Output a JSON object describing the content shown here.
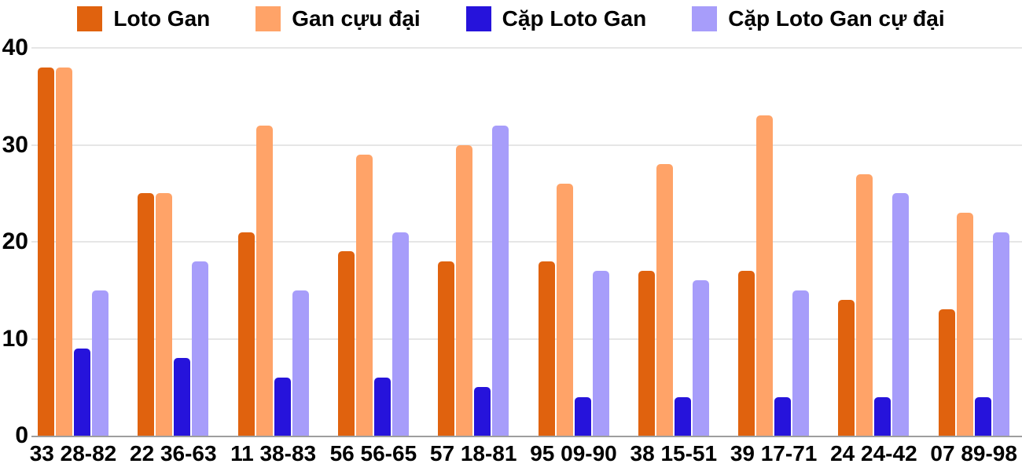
{
  "chart_data": {
    "type": "bar",
    "title": "",
    "xlabel": "",
    "ylabel": "",
    "categories": [
      "33 28-82",
      "22 36-63",
      "11 38-83",
      "56 56-65",
      "57 18-81",
      "95 09-90",
      "38 15-51",
      "39 17-71",
      "24 24-42",
      "07 89-98"
    ],
    "series": [
      {
        "name": "Loto Gan",
        "color": "#E0620E",
        "values": [
          38,
          25,
          21,
          19,
          18,
          18,
          17,
          17,
          14,
          13
        ]
      },
      {
        "name": "Gan cựu đại",
        "color": "#FFA368",
        "values": [
          38,
          25,
          32,
          29,
          30,
          26,
          28,
          33,
          27,
          23
        ]
      },
      {
        "name": "Cặp Loto Gan",
        "color": "#2613DB",
        "values": [
          9,
          8,
          6,
          6,
          5,
          4,
          4,
          4,
          4,
          4
        ]
      },
      {
        "name": "Cặp Loto Gan cự đại",
        "color": "#A79DFA",
        "values": [
          15,
          18,
          15,
          21,
          32,
          17,
          16,
          15,
          25,
          21
        ]
      }
    ],
    "ylim": [
      0,
      40
    ],
    "yticks": [
      0,
      10,
      20,
      30,
      40
    ],
    "grid": true,
    "legend_position": "top"
  },
  "colors": {
    "background": "#FFFFFF",
    "gridline": "#E6E6E6",
    "axis_line": "#9E9E9E",
    "label_text": "#000000"
  }
}
